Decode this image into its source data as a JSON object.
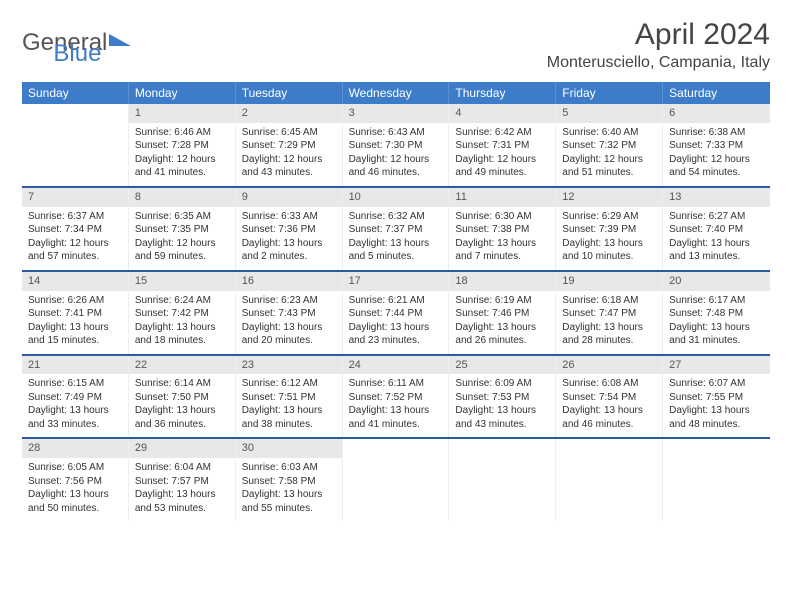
{
  "logo": {
    "part1": "General",
    "part2": "Blue"
  },
  "title": "April 2024",
  "location": "Monterusciello, Campania, Italy",
  "colors": {
    "header_bg": "#3d7cc9",
    "header_text": "#ffffff",
    "daynum_bg": "#e8e8e8",
    "week_border": "#2a5d9e",
    "text": "#333333",
    "background": "#ffffff"
  },
  "day_headers": [
    "Sunday",
    "Monday",
    "Tuesday",
    "Wednesday",
    "Thursday",
    "Friday",
    "Saturday"
  ],
  "weeks": [
    [
      {
        "n": "",
        "sunrise": "",
        "sunset": "",
        "daylight": ""
      },
      {
        "n": "1",
        "sunrise": "Sunrise: 6:46 AM",
        "sunset": "Sunset: 7:28 PM",
        "daylight": "Daylight: 12 hours and 41 minutes."
      },
      {
        "n": "2",
        "sunrise": "Sunrise: 6:45 AM",
        "sunset": "Sunset: 7:29 PM",
        "daylight": "Daylight: 12 hours and 43 minutes."
      },
      {
        "n": "3",
        "sunrise": "Sunrise: 6:43 AM",
        "sunset": "Sunset: 7:30 PM",
        "daylight": "Daylight: 12 hours and 46 minutes."
      },
      {
        "n": "4",
        "sunrise": "Sunrise: 6:42 AM",
        "sunset": "Sunset: 7:31 PM",
        "daylight": "Daylight: 12 hours and 49 minutes."
      },
      {
        "n": "5",
        "sunrise": "Sunrise: 6:40 AM",
        "sunset": "Sunset: 7:32 PM",
        "daylight": "Daylight: 12 hours and 51 minutes."
      },
      {
        "n": "6",
        "sunrise": "Sunrise: 6:38 AM",
        "sunset": "Sunset: 7:33 PM",
        "daylight": "Daylight: 12 hours and 54 minutes."
      }
    ],
    [
      {
        "n": "7",
        "sunrise": "Sunrise: 6:37 AM",
        "sunset": "Sunset: 7:34 PM",
        "daylight": "Daylight: 12 hours and 57 minutes."
      },
      {
        "n": "8",
        "sunrise": "Sunrise: 6:35 AM",
        "sunset": "Sunset: 7:35 PM",
        "daylight": "Daylight: 12 hours and 59 minutes."
      },
      {
        "n": "9",
        "sunrise": "Sunrise: 6:33 AM",
        "sunset": "Sunset: 7:36 PM",
        "daylight": "Daylight: 13 hours and 2 minutes."
      },
      {
        "n": "10",
        "sunrise": "Sunrise: 6:32 AM",
        "sunset": "Sunset: 7:37 PM",
        "daylight": "Daylight: 13 hours and 5 minutes."
      },
      {
        "n": "11",
        "sunrise": "Sunrise: 6:30 AM",
        "sunset": "Sunset: 7:38 PM",
        "daylight": "Daylight: 13 hours and 7 minutes."
      },
      {
        "n": "12",
        "sunrise": "Sunrise: 6:29 AM",
        "sunset": "Sunset: 7:39 PM",
        "daylight": "Daylight: 13 hours and 10 minutes."
      },
      {
        "n": "13",
        "sunrise": "Sunrise: 6:27 AM",
        "sunset": "Sunset: 7:40 PM",
        "daylight": "Daylight: 13 hours and 13 minutes."
      }
    ],
    [
      {
        "n": "14",
        "sunrise": "Sunrise: 6:26 AM",
        "sunset": "Sunset: 7:41 PM",
        "daylight": "Daylight: 13 hours and 15 minutes."
      },
      {
        "n": "15",
        "sunrise": "Sunrise: 6:24 AM",
        "sunset": "Sunset: 7:42 PM",
        "daylight": "Daylight: 13 hours and 18 minutes."
      },
      {
        "n": "16",
        "sunrise": "Sunrise: 6:23 AM",
        "sunset": "Sunset: 7:43 PM",
        "daylight": "Daylight: 13 hours and 20 minutes."
      },
      {
        "n": "17",
        "sunrise": "Sunrise: 6:21 AM",
        "sunset": "Sunset: 7:44 PM",
        "daylight": "Daylight: 13 hours and 23 minutes."
      },
      {
        "n": "18",
        "sunrise": "Sunrise: 6:19 AM",
        "sunset": "Sunset: 7:46 PM",
        "daylight": "Daylight: 13 hours and 26 minutes."
      },
      {
        "n": "19",
        "sunrise": "Sunrise: 6:18 AM",
        "sunset": "Sunset: 7:47 PM",
        "daylight": "Daylight: 13 hours and 28 minutes."
      },
      {
        "n": "20",
        "sunrise": "Sunrise: 6:17 AM",
        "sunset": "Sunset: 7:48 PM",
        "daylight": "Daylight: 13 hours and 31 minutes."
      }
    ],
    [
      {
        "n": "21",
        "sunrise": "Sunrise: 6:15 AM",
        "sunset": "Sunset: 7:49 PM",
        "daylight": "Daylight: 13 hours and 33 minutes."
      },
      {
        "n": "22",
        "sunrise": "Sunrise: 6:14 AM",
        "sunset": "Sunset: 7:50 PM",
        "daylight": "Daylight: 13 hours and 36 minutes."
      },
      {
        "n": "23",
        "sunrise": "Sunrise: 6:12 AM",
        "sunset": "Sunset: 7:51 PM",
        "daylight": "Daylight: 13 hours and 38 minutes."
      },
      {
        "n": "24",
        "sunrise": "Sunrise: 6:11 AM",
        "sunset": "Sunset: 7:52 PM",
        "daylight": "Daylight: 13 hours and 41 minutes."
      },
      {
        "n": "25",
        "sunrise": "Sunrise: 6:09 AM",
        "sunset": "Sunset: 7:53 PM",
        "daylight": "Daylight: 13 hours and 43 minutes."
      },
      {
        "n": "26",
        "sunrise": "Sunrise: 6:08 AM",
        "sunset": "Sunset: 7:54 PM",
        "daylight": "Daylight: 13 hours and 46 minutes."
      },
      {
        "n": "27",
        "sunrise": "Sunrise: 6:07 AM",
        "sunset": "Sunset: 7:55 PM",
        "daylight": "Daylight: 13 hours and 48 minutes."
      }
    ],
    [
      {
        "n": "28",
        "sunrise": "Sunrise: 6:05 AM",
        "sunset": "Sunset: 7:56 PM",
        "daylight": "Daylight: 13 hours and 50 minutes."
      },
      {
        "n": "29",
        "sunrise": "Sunrise: 6:04 AM",
        "sunset": "Sunset: 7:57 PM",
        "daylight": "Daylight: 13 hours and 53 minutes."
      },
      {
        "n": "30",
        "sunrise": "Sunrise: 6:03 AM",
        "sunset": "Sunset: 7:58 PM",
        "daylight": "Daylight: 13 hours and 55 minutes."
      },
      {
        "n": "",
        "sunrise": "",
        "sunset": "",
        "daylight": ""
      },
      {
        "n": "",
        "sunrise": "",
        "sunset": "",
        "daylight": ""
      },
      {
        "n": "",
        "sunrise": "",
        "sunset": "",
        "daylight": ""
      },
      {
        "n": "",
        "sunrise": "",
        "sunset": "",
        "daylight": ""
      }
    ]
  ]
}
